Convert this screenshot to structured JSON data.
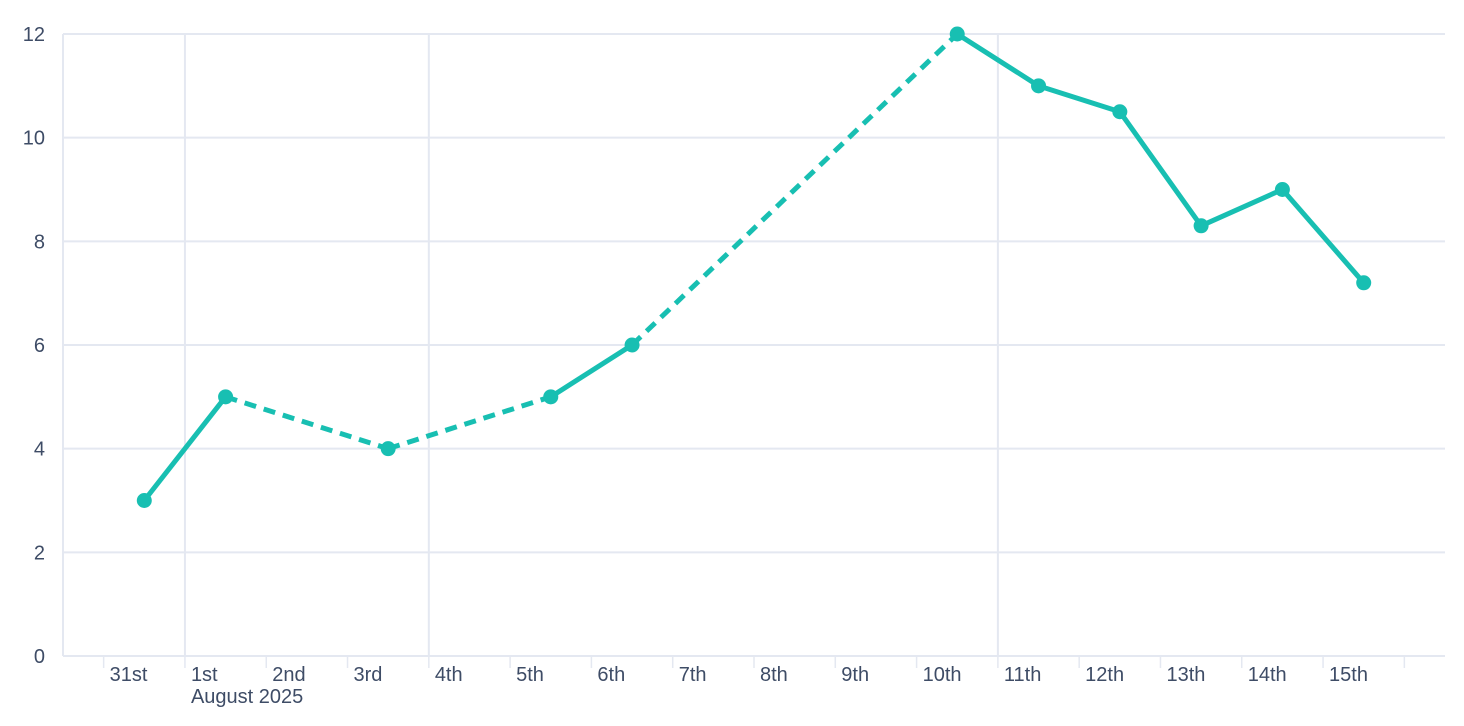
{
  "chart_data": {
    "type": "line",
    "title": "",
    "x_axis": {
      "unit": "day",
      "categories": [
        "31st",
        "1st",
        "2nd",
        "3rd",
        "4th",
        "5th",
        "6th",
        "7th",
        "8th",
        "9th",
        "10th",
        "11th",
        "12th",
        "13th",
        "14th",
        "15th"
      ],
      "context_label": "August 2025",
      "context_label_category": "1st",
      "major_gridline_categories": [
        "1st",
        "4th",
        "11th"
      ]
    },
    "y_axis": {
      "ticks": [
        0,
        2,
        4,
        6,
        8,
        10,
        12
      ],
      "tick_labels": [
        "0",
        "2",
        "4",
        "6",
        "8",
        "10",
        "12"
      ],
      "range": [
        0,
        12
      ]
    },
    "series": [
      {
        "name": "value",
        "color": "#18bfb2",
        "marker": "circle",
        "values": [
          3,
          5,
          null,
          4,
          null,
          5,
          6,
          null,
          null,
          null,
          12,
          11,
          10.5,
          8.3,
          9,
          7.2
        ],
        "line_style_rule": "solid between adjacent days, dashed across missing-day gaps"
      }
    ],
    "legend": null,
    "grid": true
  },
  "colors": {
    "accent_line": "#18bfb2",
    "axis_text": "#3e4c66",
    "gridline": "#e4e8f1",
    "background": "#ffffff"
  }
}
